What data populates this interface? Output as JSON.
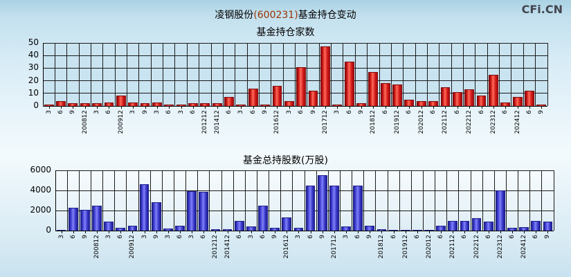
{
  "header": {
    "title_prefix": "凌钢股份",
    "title_code": "(600231)",
    "title_suffix": "基金持仓变动",
    "logo": "CFi.CN"
  },
  "colors": {
    "title_code": "#993300",
    "fund_count_bar": "#cc1111",
    "fund_shares_bar": "#3333cc",
    "grid": "#1a1a1a"
  },
  "chart_data": [
    {
      "type": "bar",
      "title": "基金持仓家数",
      "categories": [
        "3",
        "6",
        "9",
        "200812",
        "3",
        "6",
        "200912",
        "3",
        "9",
        "3",
        "6",
        "3",
        "6",
        "201212",
        "201412",
        "6",
        "3",
        "6",
        "9",
        "201612",
        "3",
        "6",
        "9",
        "201712",
        "3",
        "6",
        "9",
        "201812",
        "6",
        "201912",
        "6",
        "202012",
        "6",
        "202112",
        "6",
        "202212",
        "6",
        "202312",
        "6",
        "202412",
        "6",
        "9"
      ],
      "values": [
        1,
        4,
        2,
        2,
        2,
        3,
        8,
        3,
        2,
        3,
        1,
        1,
        2,
        2,
        2,
        7,
        1,
        14,
        1,
        16,
        4,
        31,
        12,
        47,
        1,
        35,
        2,
        27,
        18,
        17,
        5,
        4,
        4,
        15,
        11,
        13,
        8,
        25,
        3,
        7,
        12,
        1
      ],
      "xlabel": "",
      "ylabel": "",
      "ylim": [
        0,
        50
      ],
      "yticks": [
        0,
        10,
        20,
        30,
        40,
        50
      ],
      "grid": "on",
      "legend": "none",
      "bar_color": "#cc1111"
    },
    {
      "type": "bar",
      "title": "基金总持股数(万股)",
      "categories": [
        "3",
        "6",
        "9",
        "200812",
        "3",
        "6",
        "200912",
        "3",
        "9",
        "3",
        "6",
        "3",
        "6",
        "201212",
        "201412",
        "6",
        "3",
        "6",
        "9",
        "201612",
        "3",
        "6",
        "9",
        "201712",
        "3",
        "6",
        "9",
        "201812",
        "6",
        "201912",
        "6",
        "202012",
        "6",
        "202112",
        "6",
        "202212",
        "6",
        "202312",
        "6",
        "202412",
        "6",
        "9"
      ],
      "values": [
        100,
        2300,
        2100,
        2500,
        900,
        250,
        450,
        4600,
        2850,
        200,
        500,
        3900,
        3850,
        150,
        150,
        1000,
        400,
        2450,
        300,
        1300,
        300,
        4500,
        5500,
        4500,
        400,
        4500,
        500,
        150,
        100,
        50,
        30,
        30,
        500,
        950,
        1000,
        1250,
        900,
        4000,
        300,
        350,
        1000,
        900
      ],
      "xlabel": "",
      "ylabel": "",
      "ylim": [
        0,
        6000
      ],
      "yticks": [
        0,
        2000,
        4000,
        6000
      ],
      "grid": "on",
      "legend": "none",
      "bar_color": "#3333cc"
    }
  ]
}
